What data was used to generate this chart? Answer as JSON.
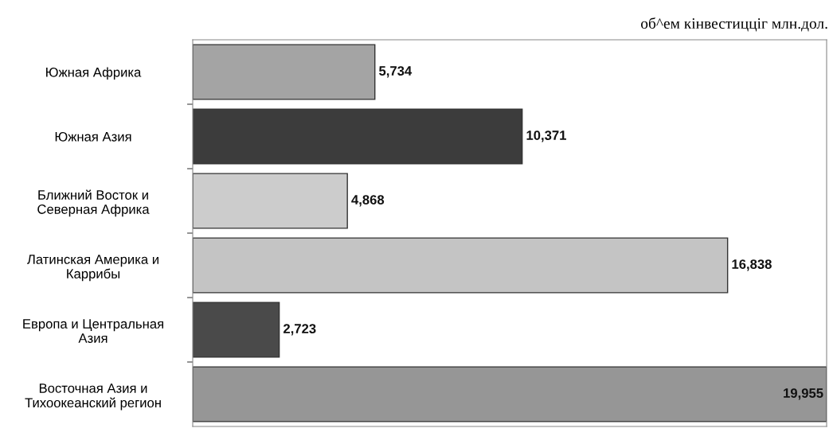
{
  "chart_data": {
    "type": "bar",
    "orientation": "horizontal",
    "title": "об^ем кінвестицціг млн.дол.",
    "categories": [
      "Южная Африка",
      "Южная Азия",
      "Ближний Восток и\nСеверная Африка",
      "Латинская Америка и\nКаррибы",
      "Европа и Центральная\nАзия",
      "Восточная Азия и\nТихоокеанский регион"
    ],
    "values": [
      5734,
      10371,
      4868,
      16838,
      2723,
      19955
    ],
    "colors": [
      "#a4a4a4",
      "#3c3c3c",
      "#cccccc",
      "#c4c4c4",
      "#4a4a4a",
      "#969696"
    ],
    "value_labels": [
      "5,734",
      "10,371",
      "4,868",
      "16,838",
      "2,723",
      "19,955"
    ],
    "grid": false,
    "legend": false
  }
}
